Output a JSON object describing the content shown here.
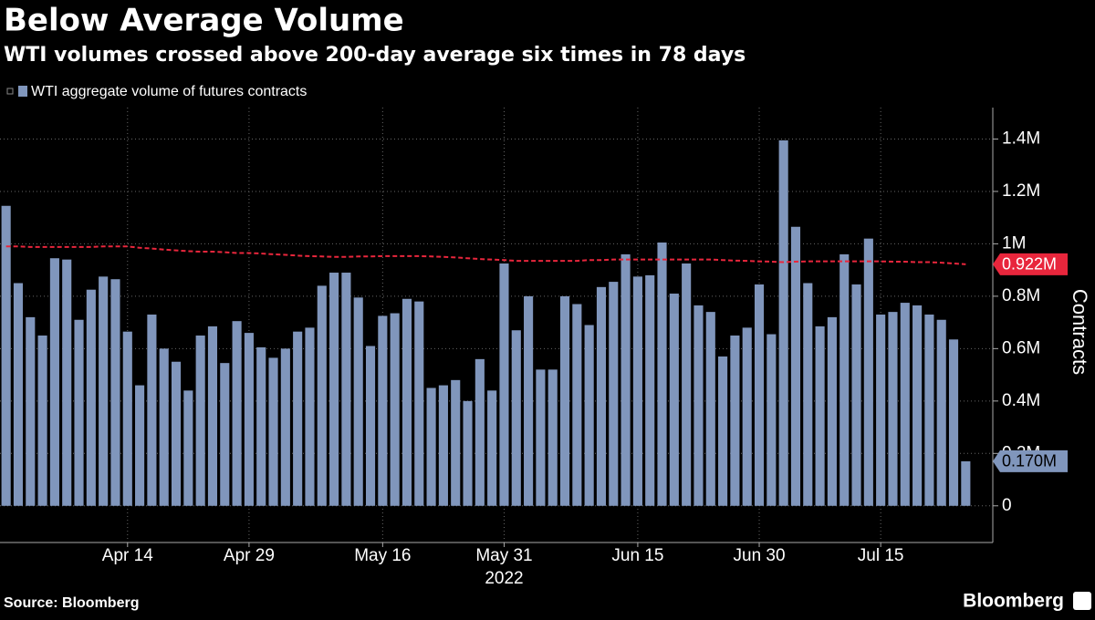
{
  "chart_data": {
    "type": "bar",
    "title": "Below Average Volume",
    "subtitle": "WTI volumes crossed above 200-day average six times in 78 days",
    "y_axis_label": "Contracts",
    "x_year_label": "2022",
    "source": "Source: Bloomberg",
    "brand": "Bloomberg",
    "categories": [
      null,
      null,
      null,
      null,
      null,
      null,
      null,
      null,
      null,
      null,
      "Apr 14",
      null,
      null,
      null,
      null,
      null,
      null,
      null,
      null,
      null,
      "Apr 29",
      null,
      null,
      null,
      null,
      null,
      null,
      null,
      null,
      null,
      null,
      "May 16",
      null,
      null,
      null,
      null,
      null,
      null,
      null,
      null,
      null,
      "May 31",
      null,
      null,
      null,
      null,
      null,
      null,
      null,
      null,
      null,
      null,
      "Jun 15",
      null,
      null,
      null,
      null,
      null,
      null,
      null,
      null,
      null,
      "Jun 30",
      null,
      null,
      null,
      null,
      null,
      null,
      null,
      null,
      null,
      "Jul 15",
      null,
      null,
      null,
      null,
      null,
      null,
      null
    ],
    "series": [
      {
        "name": "WTI aggregate volume of futures contracts",
        "type": "bar",
        "color": "#8096bc",
        "values": [
          1.145,
          0.85,
          0.72,
          0.65,
          0.945,
          0.94,
          0.71,
          0.825,
          0.875,
          0.865,
          0.665,
          0.46,
          0.73,
          0.6,
          0.55,
          0.44,
          0.65,
          0.685,
          0.545,
          0.705,
          0.66,
          0.605,
          0.565,
          0.6,
          0.665,
          0.68,
          0.84,
          0.89,
          0.89,
          0.795,
          0.61,
          0.725,
          0.735,
          0.79,
          0.78,
          0.45,
          0.46,
          0.48,
          0.4,
          0.56,
          0.44,
          0.925,
          0.67,
          0.8,
          0.52,
          0.52,
          0.8,
          0.77,
          0.69,
          0.835,
          0.855,
          0.96,
          0.875,
          0.88,
          1.005,
          0.81,
          0.925,
          0.765,
          0.74,
          0.57,
          0.65,
          0.68,
          0.845,
          0.655,
          1.395,
          1.065,
          0.85,
          0.685,
          0.72,
          0.96,
          0.845,
          1.02,
          0.73,
          0.74,
          0.775,
          0.765,
          0.73,
          0.71,
          0.635,
          0.17
        ],
        "value_labels": [
          null,
          null,
          null,
          null,
          null,
          null,
          null,
          null,
          null,
          null,
          null,
          null,
          null,
          null,
          null,
          null,
          null,
          null,
          null,
          null,
          null,
          null,
          null,
          null,
          null,
          null,
          null,
          null,
          null,
          null,
          null,
          null,
          null,
          null,
          null,
          null,
          null,
          null,
          null,
          null,
          null,
          null,
          null,
          null,
          null,
          null,
          null,
          null,
          null,
          null,
          null,
          null,
          null,
          null,
          null,
          null,
          null,
          null,
          null,
          null,
          null,
          null,
          null,
          null,
          null,
          null,
          null,
          null,
          null,
          null,
          null,
          null,
          null,
          null,
          null,
          null,
          null,
          null,
          null,
          "0.170M"
        ]
      },
      {
        "type": "line",
        "color": "#e8263c",
        "dashed": true,
        "values": [
          0.99,
          0.99,
          0.988,
          0.988,
          0.988,
          0.988,
          0.988,
          0.988,
          0.99,
          0.99,
          0.99,
          0.985,
          0.982,
          0.978,
          0.975,
          0.972,
          0.97,
          0.97,
          0.968,
          0.965,
          0.965,
          0.963,
          0.96,
          0.958,
          0.955,
          0.953,
          0.952,
          0.95,
          0.95,
          0.952,
          0.952,
          0.953,
          0.953,
          0.953,
          0.953,
          0.952,
          0.95,
          0.948,
          0.945,
          0.942,
          0.94,
          0.938,
          0.935,
          0.935,
          0.935,
          0.935,
          0.935,
          0.935,
          0.938,
          0.938,
          0.94,
          0.94,
          0.94,
          0.94,
          0.94,
          0.94,
          0.94,
          0.94,
          0.94,
          0.938,
          0.936,
          0.935,
          0.933,
          0.932,
          0.93,
          0.932,
          0.933,
          0.933,
          0.933,
          0.933,
          0.933,
          0.933,
          0.933,
          0.932,
          0.932,
          0.93,
          0.93,
          0.928,
          0.925,
          0.922
        ],
        "value_labels": [
          null,
          null,
          null,
          null,
          null,
          null,
          null,
          null,
          null,
          null,
          null,
          null,
          null,
          null,
          null,
          null,
          null,
          null,
          null,
          null,
          null,
          null,
          null,
          null,
          null,
          null,
          null,
          null,
          null,
          null,
          null,
          null,
          null,
          null,
          null,
          null,
          null,
          null,
          null,
          null,
          null,
          null,
          null,
          null,
          null,
          null,
          null,
          null,
          null,
          null,
          null,
          null,
          null,
          null,
          null,
          null,
          null,
          null,
          null,
          null,
          null,
          null,
          null,
          null,
          null,
          null,
          null,
          null,
          null,
          null,
          null,
          null,
          null,
          null,
          null,
          null,
          null,
          null,
          null,
          "0.922M"
        ]
      }
    ],
    "ylim": [
      -0.14,
      1.52
    ],
    "yticks": [
      0,
      {
        "value": 0.2,
        "label": "0.2M"
      },
      {
        "value": 0.4,
        "label": "0.4M"
      },
      {
        "value": 0.6,
        "label": "0.6M"
      },
      {
        "value": 0.8,
        "label": "0.8M"
      },
      {
        "value": 1,
        "label": "1M"
      },
      {
        "value": 1.2,
        "label": "1.2M"
      },
      {
        "value": 1.4,
        "label": "1.4M"
      }
    ],
    "grid": true,
    "legend": "top-left"
  }
}
